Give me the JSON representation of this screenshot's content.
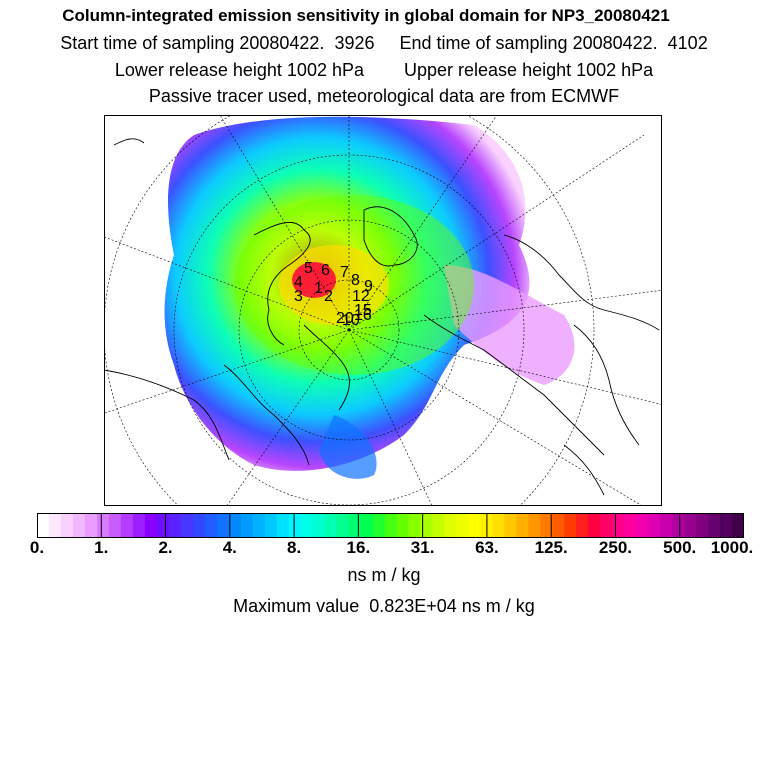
{
  "title": {
    "line1": "Column-integrated emission sensitivity in global domain for NP3_20080421",
    "line2": "Start time of sampling 20080422.  3926     End time of sampling 20080422.  4102",
    "line3": "Lower release height 1002 hPa        Upper release height 1002 hPa",
    "line4": "Passive tracer used, meteorological data are from ECMWF"
  },
  "chart_data": {
    "type": "heatmap",
    "projection": "polar-stereographic-north",
    "colorbar": {
      "tick_labels": [
        "0.",
        "1.",
        "2.",
        "4.",
        "8.",
        "16.",
        "31.",
        "63.",
        "125.",
        "250.",
        "500.",
        "1000."
      ],
      "colors": [
        "#ffffff",
        "#fde8ff",
        "#f9d0ff",
        "#f2b8ff",
        "#ea9cff",
        "#d87bff",
        "#c85cff",
        "#b43cff",
        "#9c1eff",
        "#8a00ff",
        "#6e10ff",
        "#5a22ff",
        "#4636ff",
        "#3248ff",
        "#205cff",
        "#1072ff",
        "#0088ff",
        "#009cff",
        "#00b2ff",
        "#00c8ff",
        "#00e0ff",
        "#00f4ff",
        "#00ffe8",
        "#00ffd0",
        "#00ffb0",
        "#00ff90",
        "#00ff70",
        "#00ff50",
        "#20ff30",
        "#44ff10",
        "#66ff00",
        "#88ff00",
        "#aaff00",
        "#c4ff00",
        "#ddff00",
        "#f0ff00",
        "#ffff00",
        "#fff000",
        "#ffe000",
        "#ffc800",
        "#ffb000",
        "#ff9600",
        "#ff7a00",
        "#ff5c00",
        "#ff3c00",
        "#ff1e20",
        "#ff0040",
        "#ff0066",
        "#ff0088",
        "#ff00a0",
        "#f200b0",
        "#e000b4",
        "#c800ac",
        "#b000a0",
        "#980090",
        "#800080",
        "#680070",
        "#520060",
        "#400048"
      ],
      "unit": "ns m / kg"
    },
    "max_value": "Maximum value  0.823E+04 ns m / kg",
    "point_labels": [
      {
        "id": "5",
        "label": "5"
      },
      {
        "id": "6",
        "label": "6"
      },
      {
        "id": "7",
        "label": "7"
      },
      {
        "id": "8",
        "label": "8"
      },
      {
        "id": "9",
        "label": "9"
      },
      {
        "id": "4",
        "label": "4"
      },
      {
        "id": "1",
        "label": "1"
      },
      {
        "id": "3",
        "label": "3"
      },
      {
        "id": "2",
        "label": "2"
      },
      {
        "id": "12",
        "label": "12"
      },
      {
        "id": "15",
        "label": "15"
      },
      {
        "id": "20",
        "label": "20"
      },
      {
        "id": "10",
        "label": "10"
      },
      {
        "id": "16",
        "label": "16"
      }
    ]
  }
}
